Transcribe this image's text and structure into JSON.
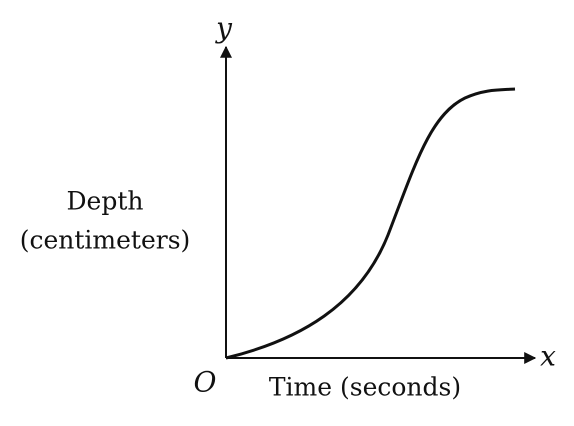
{
  "axes": {
    "y_symbol": "y",
    "x_symbol": "x",
    "origin": "O"
  },
  "labels": {
    "y_label_line1": "Depth",
    "y_label_line2": "(centimeters)",
    "x_label": "Time (seconds)"
  }
}
